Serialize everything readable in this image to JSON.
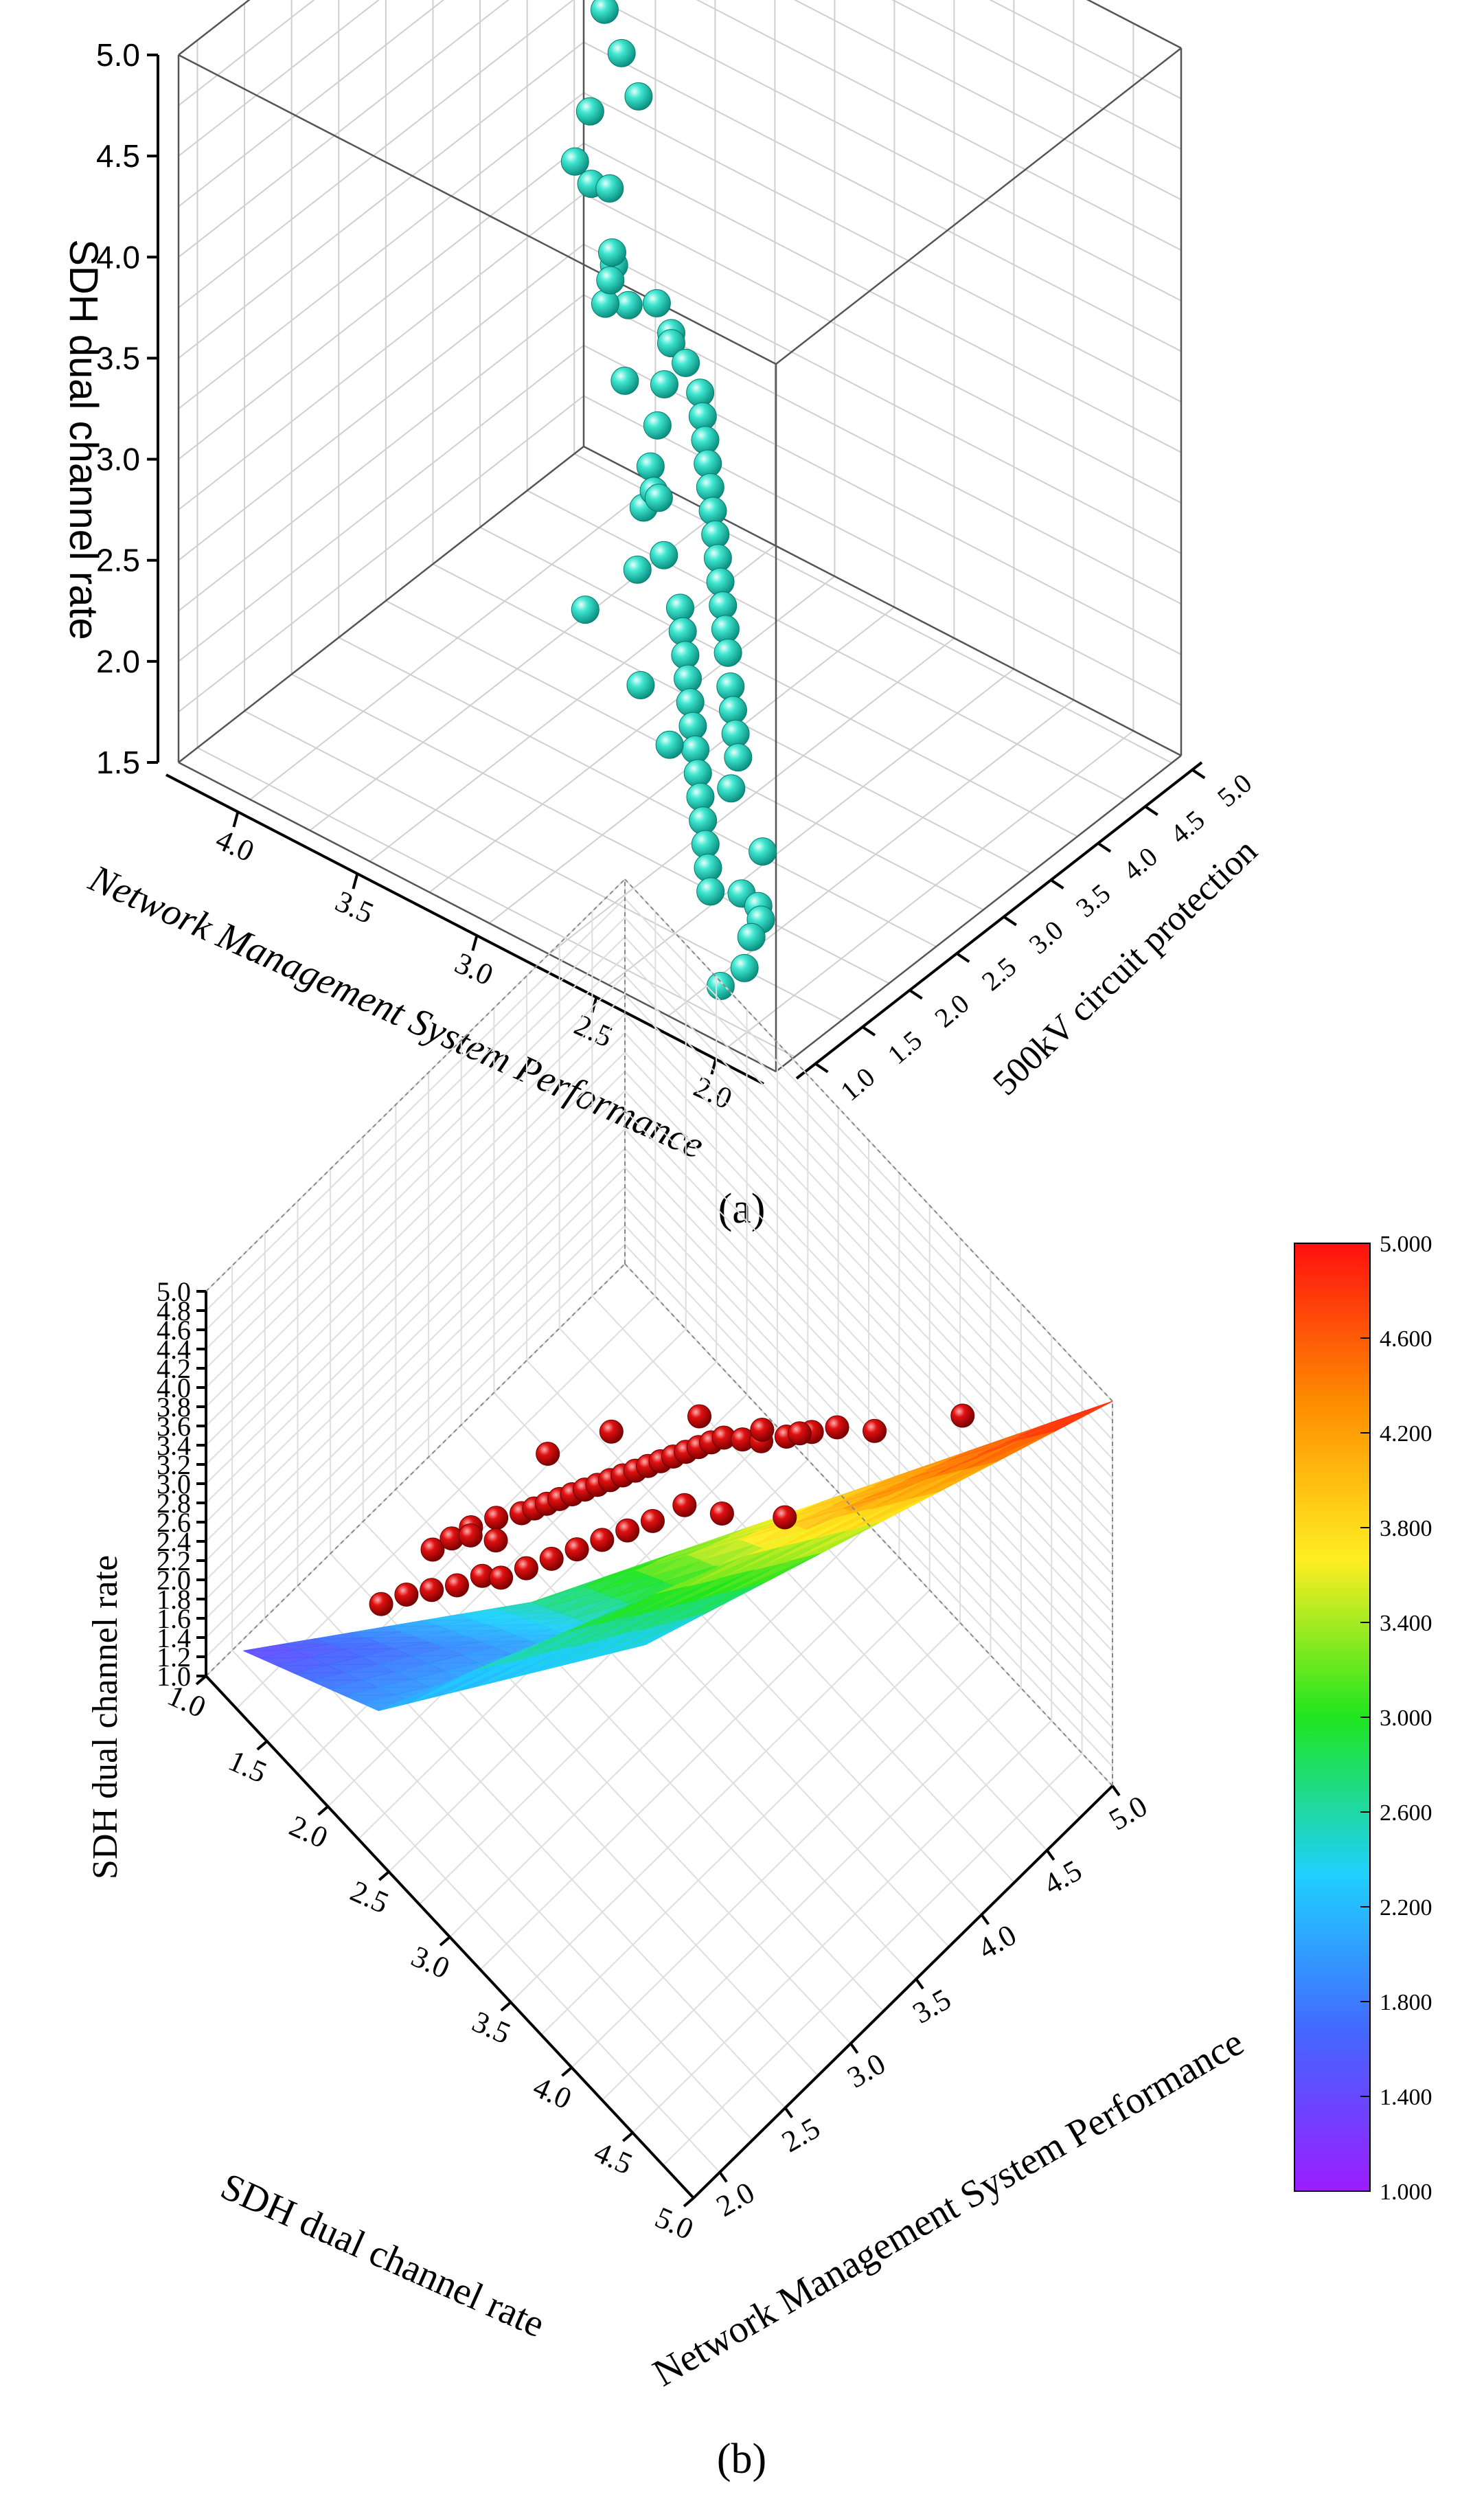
{
  "colors": {
    "grid": "#cfcfcf",
    "axis": "#000000",
    "sphere": "#20d8c0",
    "red_sphere": "#d40000"
  },
  "panel_a": {
    "label": "(a)",
    "chart_data": {
      "type": "scatter",
      "x_label": "Network Management System Performance",
      "y_label": "500kV circuit protection",
      "z_label": "SDH dual channel rate",
      "x_ticks": [
        "2.0",
        "2.5",
        "3.0",
        "3.5",
        "4.0"
      ],
      "y_ticks": [
        "1.0",
        "1.5",
        "2.0",
        "2.5",
        "3.0",
        "3.5",
        "4.0",
        "4.5",
        "5.0"
      ],
      "z_ticks": [
        "1.5",
        "2.0",
        "2.5",
        "3.0",
        "3.5",
        "4.0",
        "4.5",
        "5.0"
      ],
      "xlim": [
        1.8,
        4.3
      ],
      "ylim": [
        0.8,
        5.1
      ],
      "zlim": [
        1.5,
        5.0
      ],
      "points": [
        [
          2.05,
          1.1,
          1.75
        ],
        [
          2.1,
          1.3,
          1.8
        ],
        [
          2.1,
          1.4,
          1.85
        ],
        [
          2.15,
          1.5,
          1.85
        ],
        [
          2.2,
          1.45,
          1.9
        ],
        [
          2.15,
          1.1,
          1.6
        ],
        [
          2.25,
          1.8,
          1.95
        ],
        [
          2.35,
          1.5,
          1.8
        ],
        [
          2.4,
          1.6,
          1.85
        ],
        [
          2.45,
          1.7,
          1.9
        ],
        [
          2.5,
          1.8,
          1.95
        ],
        [
          2.55,
          1.9,
          2.0
        ],
        [
          2.6,
          2.0,
          2.05
        ],
        [
          2.65,
          2.1,
          2.1
        ],
        [
          2.7,
          2.2,
          2.15
        ],
        [
          2.75,
          2.3,
          2.2
        ],
        [
          2.8,
          2.4,
          2.25
        ],
        [
          2.85,
          2.5,
          2.3
        ],
        [
          2.9,
          2.6,
          2.35
        ],
        [
          2.95,
          2.7,
          2.4
        ],
        [
          2.5,
          2.1,
          2.0
        ],
        [
          2.55,
          2.3,
          2.05
        ],
        [
          2.6,
          2.4,
          2.1
        ],
        [
          2.65,
          2.5,
          2.15
        ],
        [
          2.7,
          2.6,
          2.2
        ],
        [
          2.75,
          2.7,
          2.3
        ],
        [
          2.8,
          2.8,
          2.35
        ],
        [
          2.85,
          2.9,
          2.4
        ],
        [
          2.9,
          3.0,
          2.45
        ],
        [
          2.95,
          3.1,
          2.5
        ],
        [
          3.0,
          3.2,
          2.55
        ],
        [
          3.05,
          3.3,
          2.6
        ],
        [
          3.1,
          3.4,
          2.65
        ],
        [
          3.15,
          3.5,
          2.7
        ],
        [
          3.2,
          3.6,
          2.75
        ],
        [
          3.25,
          3.7,
          2.8
        ],
        [
          3.3,
          3.8,
          2.85
        ],
        [
          3.4,
          3.9,
          2.9
        ],
        [
          3.5,
          4.0,
          2.95
        ],
        [
          3.6,
          4.1,
          3.0
        ],
        [
          3.3,
          3.2,
          2.5
        ],
        [
          3.35,
          3.4,
          2.6
        ],
        [
          3.4,
          3.6,
          2.7
        ],
        [
          3.45,
          3.8,
          2.8
        ],
        [
          3.5,
          4.0,
          2.9
        ],
        [
          2.9,
          2.4,
          2.8
        ],
        [
          3.0,
          2.6,
          2.95
        ],
        [
          3.05,
          2.5,
          2.6
        ],
        [
          3.1,
          2.8,
          2.85
        ],
        [
          3.15,
          2.2,
          2.45
        ],
        [
          2.6,
          1.7,
          2.3
        ],
        [
          2.8,
          1.9,
          2.4
        ],
        [
          3.6,
          3.8,
          3.1
        ],
        [
          3.7,
          3.9,
          3.2
        ],
        [
          3.3,
          3.0,
          3.2
        ],
        [
          3.5,
          3.3,
          3.35
        ],
        [
          3.55,
          3.5,
          3.5
        ],
        [
          3.4,
          3.1,
          3.6
        ],
        [
          3.6,
          3.6,
          3.75
        ],
        [
          3.8,
          3.9,
          3.9
        ],
        [
          4.1,
          4.5,
          3.25
        ],
        [
          4.2,
          4.9,
          4.0
        ],
        [
          4.15,
          4.8,
          3.0
        ],
        [
          3.4,
          3.4,
          4.4
        ],
        [
          3.55,
          3.6,
          4.45
        ],
        [
          3.7,
          3.8,
          4.5
        ],
        [
          3.85,
          4.0,
          4.55
        ],
        [
          3.9,
          4.1,
          4.6
        ],
        [
          3.95,
          4.2,
          4.6
        ],
        [
          4.0,
          4.3,
          4.65
        ],
        [
          4.05,
          4.35,
          4.65
        ],
        [
          4.1,
          4.4,
          4.7
        ],
        [
          4.15,
          4.5,
          4.7
        ],
        [
          4.2,
          4.6,
          4.75
        ],
        [
          4.25,
          4.8,
          4.8
        ],
        [
          4.28,
          4.95,
          4.85
        ],
        [
          4.3,
          5.0,
          4.85
        ],
        [
          4.0,
          4.4,
          4.6
        ]
      ]
    }
  },
  "panel_b": {
    "label": "(b)",
    "chart_data": {
      "type": "surface",
      "x_label": "SDH dual channel rate",
      "y_label": "Network Management System Performance",
      "z_label": "SDH dual channel rate",
      "x_ticks": [
        "1.0",
        "1.5",
        "2.0",
        "2.5",
        "3.0",
        "3.5",
        "4.0",
        "4.5",
        "5.0"
      ],
      "y_ticks": [
        "2.0",
        "2.5",
        "3.0",
        "3.5",
        "4.0",
        "4.5",
        "5.0"
      ],
      "z_ticks": [
        "1.0",
        "1.2",
        "1.4",
        "1.6",
        "1.8",
        "2.0",
        "2.2",
        "2.4",
        "2.6",
        "2.8",
        "3.0",
        "3.2",
        "3.4",
        "3.6",
        "3.8",
        "4.0",
        "4.2",
        "4.4",
        "4.6",
        "4.8",
        "5.0"
      ],
      "xlim": [
        1.0,
        5.0
      ],
      "ylim": [
        1.8,
        5.0
      ],
      "zlim": [
        1.0,
        5.0
      ],
      "surface_vertices": [
        [
          1.2,
          1.9,
          1.4
        ],
        [
          2.6,
          2.8,
          2.6
        ],
        [
          3.1,
          3.2,
          2.3
        ],
        [
          5.0,
          5.0,
          5.0
        ],
        [
          2.2,
          2.0,
          2.0
        ],
        [
          4.5,
          4.2,
          4.6
        ]
      ],
      "colorbar": {
        "min": 1.0,
        "max": 5.0,
        "tick_labels": [
          "5.000",
          "4.600",
          "4.200",
          "3.800",
          "3.400",
          "3.000",
          "2.600",
          "2.200",
          "1.800",
          "1.400",
          "1.000"
        ],
        "stops": [
          "#9b1dff",
          "#4466ff",
          "#1fd0ff",
          "#1fe51f",
          "#ffee22",
          "#ff8c00",
          "#ff1010"
        ]
      },
      "points": [
        [
          2.0,
          2.6,
          2.6
        ],
        [
          2.05,
          2.7,
          2.65
        ],
        [
          2.1,
          2.8,
          2.7
        ],
        [
          2.15,
          2.75,
          2.75
        ],
        [
          2.2,
          2.9,
          2.8
        ],
        [
          2.25,
          2.85,
          2.7
        ],
        [
          2.3,
          3.0,
          2.85
        ],
        [
          2.35,
          3.05,
          2.9
        ],
        [
          2.4,
          3.1,
          2.95
        ],
        [
          2.45,
          3.15,
          3.0
        ],
        [
          2.5,
          3.2,
          3.05
        ],
        [
          2.55,
          3.25,
          3.1
        ],
        [
          2.6,
          3.3,
          3.15
        ],
        [
          2.65,
          3.35,
          3.2
        ],
        [
          2.7,
          3.4,
          3.25
        ],
        [
          2.75,
          3.45,
          3.3
        ],
        [
          2.8,
          3.5,
          3.35
        ],
        [
          2.85,
          3.55,
          3.4
        ],
        [
          2.9,
          3.6,
          3.45
        ],
        [
          2.95,
          3.65,
          3.5
        ],
        [
          3.0,
          3.7,
          3.55
        ],
        [
          3.05,
          3.75,
          3.6
        ],
        [
          3.1,
          3.8,
          3.65
        ],
        [
          3.2,
          3.85,
          3.7
        ],
        [
          3.3,
          3.9,
          3.75
        ],
        [
          3.4,
          4.0,
          3.8
        ],
        [
          3.5,
          4.1,
          3.85
        ],
        [
          3.6,
          4.2,
          3.9
        ],
        [
          3.8,
          4.3,
          4.0
        ],
        [
          4.2,
          4.6,
          4.3
        ],
        [
          2.1,
          2.5,
          2.45
        ],
        [
          2.2,
          2.6,
          2.5
        ],
        [
          2.3,
          2.7,
          2.6
        ],
        [
          2.4,
          2.75,
          2.65
        ],
        [
          2.5,
          2.85,
          2.75
        ],
        [
          2.6,
          2.95,
          2.85
        ],
        [
          2.7,
          3.05,
          2.95
        ],
        [
          2.8,
          3.15,
          3.05
        ],
        [
          2.9,
          3.25,
          3.15
        ],
        [
          3.0,
          3.35,
          3.25
        ],
        [
          2.3,
          3.2,
          3.2
        ],
        [
          2.5,
          3.5,
          3.3
        ],
        [
          2.9,
          3.8,
          3.6
        ],
        [
          3.2,
          4.0,
          3.6
        ],
        [
          3.4,
          4.1,
          3.7
        ],
        [
          1.9,
          2.3,
          2.3
        ],
        [
          2.0,
          2.4,
          2.4
        ],
        [
          3.6,
          3.8,
          3.5
        ],
        [
          3.3,
          3.6,
          3.4
        ],
        [
          3.1,
          3.5,
          3.35
        ]
      ]
    }
  }
}
